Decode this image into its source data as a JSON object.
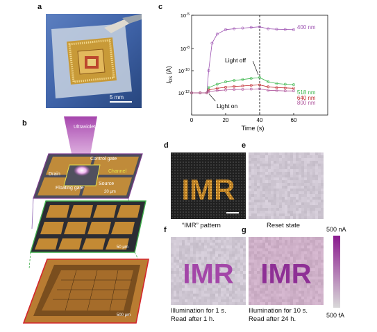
{
  "panels": {
    "a": {
      "label": "a",
      "scale_bar": "5 mm"
    },
    "b": {
      "label": "b",
      "ultraviolet": "Ultraviolet",
      "control_gate": "Control gate",
      "drain": "Drain",
      "channel": "Channel",
      "source": "Source",
      "floating_gate": "Floating gate",
      "scale_top": "20 μm",
      "scale_mid": "50 μm",
      "scale_bottom": "500 μm"
    },
    "c": {
      "label": "c",
      "ylabel_main": "I",
      "ylabel_sub": "DS",
      "ylabel_unit": " (A)",
      "xlabel": "Time (s)",
      "annot_light_off": "Light off",
      "annot_light_on": "Light on"
    },
    "d": {
      "label": "d",
      "pattern_text": "IMR",
      "caption": "“IMR” pattern"
    },
    "e": {
      "label": "e",
      "caption": "Reset state"
    },
    "f": {
      "label": "f",
      "pattern_text": "IMR",
      "caption_line1": "Illumination for 1 s.",
      "caption_line2": "Read after 1 h."
    },
    "g": {
      "label": "g",
      "pattern_text": "IMR",
      "caption_line1": "Illumination for 10 s.",
      "caption_line2": "Read after 24 h."
    },
    "colorbar": {
      "max_label": "500 nA",
      "min_label": "500 fA",
      "color_max": "#8a1a8e",
      "color_min": "#d9d9d9"
    }
  },
  "chart_data": {
    "type": "line",
    "title": "",
    "xlabel": "Time (s)",
    "ylabel": "IDS (A)",
    "xlim": [
      0,
      80
    ],
    "x_ticks": [
      0,
      20,
      40,
      60
    ],
    "y_scale": "log",
    "ylim": [
      1e-14,
      1e-05
    ],
    "y_ticks": [
      "10^-5",
      "10^-8",
      "10^-10",
      "10^-12"
    ],
    "light_on_time": 10,
    "light_off_time": 40,
    "series": [
      {
        "name": "400 nm",
        "color": "#9b4fb0",
        "x": [
          0,
          5,
          9,
          10,
          12,
          15,
          20,
          25,
          30,
          35,
          40,
          45,
          50,
          55,
          60
        ],
        "y": [
          1e-12,
          1e-12,
          1e-12,
          1e-10,
          3e-08,
          2e-07,
          5e-07,
          6e-07,
          7e-07,
          8e-07,
          9e-07,
          6e-07,
          5.5e-07,
          5.2e-07,
          5e-07
        ]
      },
      {
        "name": "518 nm",
        "color": "#39b54a",
        "x": [
          0,
          5,
          9,
          10,
          15,
          20,
          25,
          30,
          35,
          40,
          45,
          50,
          55,
          60
        ],
        "y": [
          1e-12,
          1e-12,
          1e-12,
          3e-12,
          6e-12,
          1e-11,
          1.3e-11,
          1.6e-11,
          2e-11,
          2.4e-11,
          1e-11,
          7e-12,
          6e-12,
          5.5e-12
        ]
      },
      {
        "name": "640 nm",
        "color": "#c0272d",
        "x": [
          0,
          5,
          9,
          10,
          15,
          20,
          25,
          30,
          35,
          40,
          45,
          50,
          55,
          60
        ],
        "y": [
          1e-12,
          1e-12,
          1e-12,
          1.8e-12,
          2.6e-12,
          3.2e-12,
          3.8e-12,
          4.2e-12,
          4.8e-12,
          5.2e-12,
          3.5e-12,
          3e-12,
          2.8e-12,
          2.6e-12
        ]
      },
      {
        "name": "800 nm",
        "color": "#b0589e",
        "x": [
          0,
          5,
          9,
          10,
          15,
          20,
          25,
          30,
          35,
          40,
          45,
          50,
          55,
          60
        ],
        "y": [
          1e-12,
          1e-12,
          1e-12,
          1.3e-12,
          1.6e-12,
          1.8e-12,
          2e-12,
          2.1e-12,
          2.2e-12,
          2.3e-12,
          1.7e-12,
          1.6e-12,
          1.5e-12,
          1.5e-12
        ]
      }
    ]
  }
}
